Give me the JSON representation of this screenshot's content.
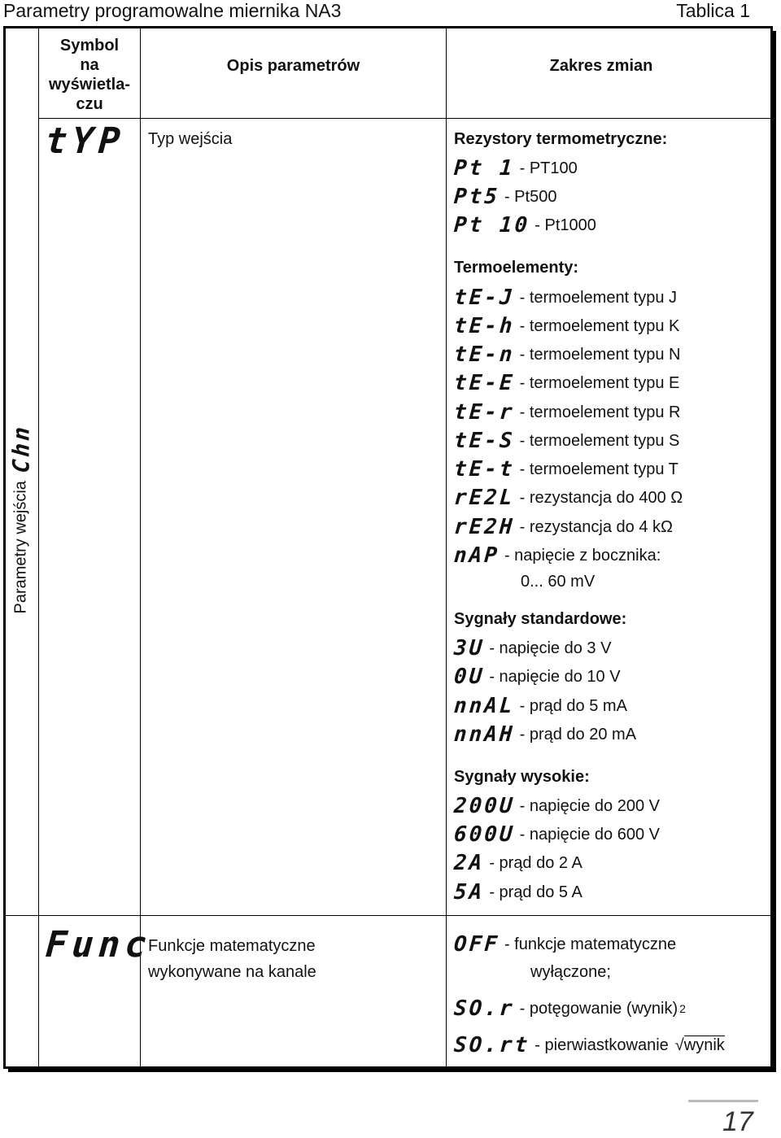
{
  "header": {
    "title": "Parametry programowalne miernika NA3",
    "table_label": "Tablica 1"
  },
  "columns": {
    "symbol": "Symbol na wyświetla-czu",
    "symbol_lines": [
      "Symbol",
      "na",
      "wyświetla-",
      "czu"
    ],
    "description": "Opis parametrów",
    "range": "Zakres zmian"
  },
  "side": {
    "label": "Parametry wejścia",
    "symbol": "Chn"
  },
  "rows": [
    {
      "symbol": "tYP",
      "description": "Typ wejścia",
      "groups": [
        {
          "title": "Rezystory termometryczne:",
          "items": [
            {
              "code": "Pt 1",
              "text": "- PT100"
            },
            {
              "code": "Pt5",
              "text": "- Pt500"
            },
            {
              "code": "Pt 10",
              "text": "- Pt1000"
            }
          ]
        },
        {
          "title": "Termoelementy:",
          "items": [
            {
              "code": "tE-J",
              "text": "- termoelement typu J"
            },
            {
              "code": "tE-h",
              "text": "- termoelement typu K"
            },
            {
              "code": "tE-n",
              "text": "- termoelement typu N"
            },
            {
              "code": "tE-E",
              "text": "- termoelement typu E"
            },
            {
              "code": "tE-r",
              "text": "- termoelement typu R"
            },
            {
              "code": "tE-S",
              "text": "- termoelement typu S"
            },
            {
              "code": "tE-t",
              "text": "- termoelement typu T"
            },
            {
              "code": "rE2L",
              "text": "- rezystancja do 400 Ω"
            },
            {
              "code": "rE2H",
              "text": "- rezystancja do 4 kΩ"
            },
            {
              "code": "nAP",
              "text": "- napięcie z bocznika:",
              "text2": "0... 60 mV"
            }
          ]
        },
        {
          "title": "Sygnały standardowe:",
          "items": [
            {
              "code": "3U",
              "text": "- napięcie do 3 V"
            },
            {
              "code": "0U",
              "text": "- napięcie do 10 V"
            },
            {
              "code": "nnAL",
              "text": "- prąd do 5 mA"
            },
            {
              "code": "nnAH",
              "text": "- prąd do 20 mA"
            }
          ]
        },
        {
          "title": "Sygnały wysokie:",
          "items": [
            {
              "code": "200U",
              "text": "- napięcie do 200 V"
            },
            {
              "code": "600U",
              "text": "- napięcie do 600 V"
            },
            {
              "code": "2A",
              "text": "- prąd do 2 A"
            },
            {
              "code": "5A",
              "text": "- prąd do 5 A"
            }
          ]
        }
      ]
    },
    {
      "symbol": "Func",
      "description_lines": [
        "Funkcje matematyczne",
        "wykonywane na kanale"
      ],
      "items": [
        {
          "code": "OFF",
          "text": "- funkcje matematyczne",
          "text2": "wyłączone;"
        },
        {
          "code": "SO.r",
          "text": "- potęgowanie (wynik)",
          "sup": "2"
        },
        {
          "code": "SO.rt",
          "text": "- pierwiastkowanie",
          "sqrt_symbol": "√",
          "sqrt_arg": "wynik"
        }
      ]
    }
  ],
  "page_number": "17"
}
